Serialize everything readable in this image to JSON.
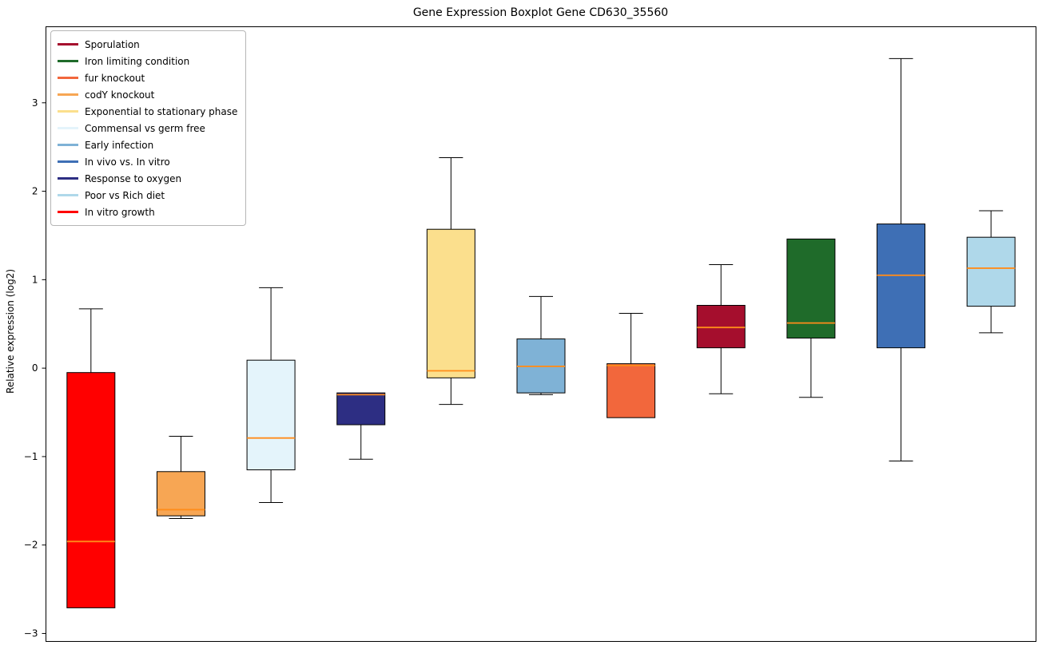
{
  "figure": {
    "title": "Gene Expression Boxplot Gene CD630_35560",
    "ylabel": "Relative expression (log2)"
  },
  "chart_data": {
    "type": "boxplot",
    "title": "Gene Expression Boxplot Gene CD630_35560",
    "xlabel": "",
    "ylabel": "Relative expression (log2)",
    "ylim": [
      -3.09,
      3.86
    ],
    "yticks": [
      -3,
      -2,
      -1,
      0,
      1,
      2,
      3
    ],
    "ytick_labels": [
      "−3",
      "−2",
      "−1",
      "0",
      "1",
      "2",
      "3"
    ],
    "grid": false,
    "legend_position": "upper-left",
    "median_color": "#FF8C1A",
    "box_edge_color": "#000000",
    "legend": [
      {
        "label": "Sporulation",
        "color": "#A50E2D"
      },
      {
        "label": "Iron limiting condition",
        "color": "#1F6B2A"
      },
      {
        "label": "fur knockout",
        "color": "#F2673C"
      },
      {
        "label": "codY knockout",
        "color": "#F7A654"
      },
      {
        "label": "Exponential to stationary phase",
        "color": "#FBDF8D"
      },
      {
        "label": "Commensal vs germ free",
        "color": "#E4F4FB"
      },
      {
        "label": "Early infection",
        "color": "#7FB2D6"
      },
      {
        "label": "In vivo vs. In vitro",
        "color": "#3E6FB5"
      },
      {
        "label": "Response to oxygen",
        "color": "#2D2E83"
      },
      {
        "label": "Poor vs Rich diet",
        "color": "#AFD8EA"
      },
      {
        "label": "In vitro growth",
        "color": "#FF0000"
      }
    ],
    "boxes": [
      {
        "name": "In vitro growth",
        "color": "#FF0000",
        "whisker_low": -2.71,
        "q1": -2.71,
        "median": -1.96,
        "q3": -0.05,
        "whisker_high": 0.67
      },
      {
        "name": "codY knockout",
        "color": "#F7A654",
        "whisker_low": -1.7,
        "q1": -1.67,
        "median": -1.6,
        "q3": -1.17,
        "whisker_high": -0.77
      },
      {
        "name": "Commensal vs germ free",
        "color": "#E4F4FB",
        "whisker_low": -1.52,
        "q1": -1.15,
        "median": -0.79,
        "q3": 0.09,
        "whisker_high": 0.91
      },
      {
        "name": "Response to oxygen",
        "color": "#2D2E83",
        "whisker_low": -1.03,
        "q1": -0.64,
        "median": -0.3,
        "q3": -0.28,
        "whisker_high": -0.28
      },
      {
        "name": "Exponential to stationary phase",
        "color": "#FBDF8D",
        "whisker_low": -0.41,
        "q1": -0.11,
        "median": -0.03,
        "q3": 1.57,
        "whisker_high": 2.38
      },
      {
        "name": "Early infection",
        "color": "#7FB2D6",
        "whisker_low": -0.3,
        "q1": -0.28,
        "median": 0.02,
        "q3": 0.33,
        "whisker_high": 0.81
      },
      {
        "name": "fur knockout",
        "color": "#F2673C",
        "whisker_low": -0.56,
        "q1": -0.56,
        "median": 0.03,
        "q3": 0.05,
        "whisker_high": 0.62
      },
      {
        "name": "Sporulation",
        "color": "#A50E2D",
        "whisker_low": -0.29,
        "q1": 0.23,
        "median": 0.46,
        "q3": 0.71,
        "whisker_high": 1.17
      },
      {
        "name": "Iron limiting condition",
        "color": "#1F6B2A",
        "whisker_low": -0.33,
        "q1": 0.34,
        "median": 0.51,
        "q3": 1.46,
        "whisker_high": 1.46
      },
      {
        "name": "In vivo vs. In vitro",
        "color": "#3E6FB5",
        "whisker_low": -1.05,
        "q1": 0.23,
        "median": 1.05,
        "q3": 1.63,
        "whisker_high": 3.5
      },
      {
        "name": "Poor vs Rich diet",
        "color": "#AFD8EA",
        "whisker_low": 0.4,
        "q1": 0.7,
        "median": 1.13,
        "q3": 1.48,
        "whisker_high": 1.78
      }
    ]
  }
}
